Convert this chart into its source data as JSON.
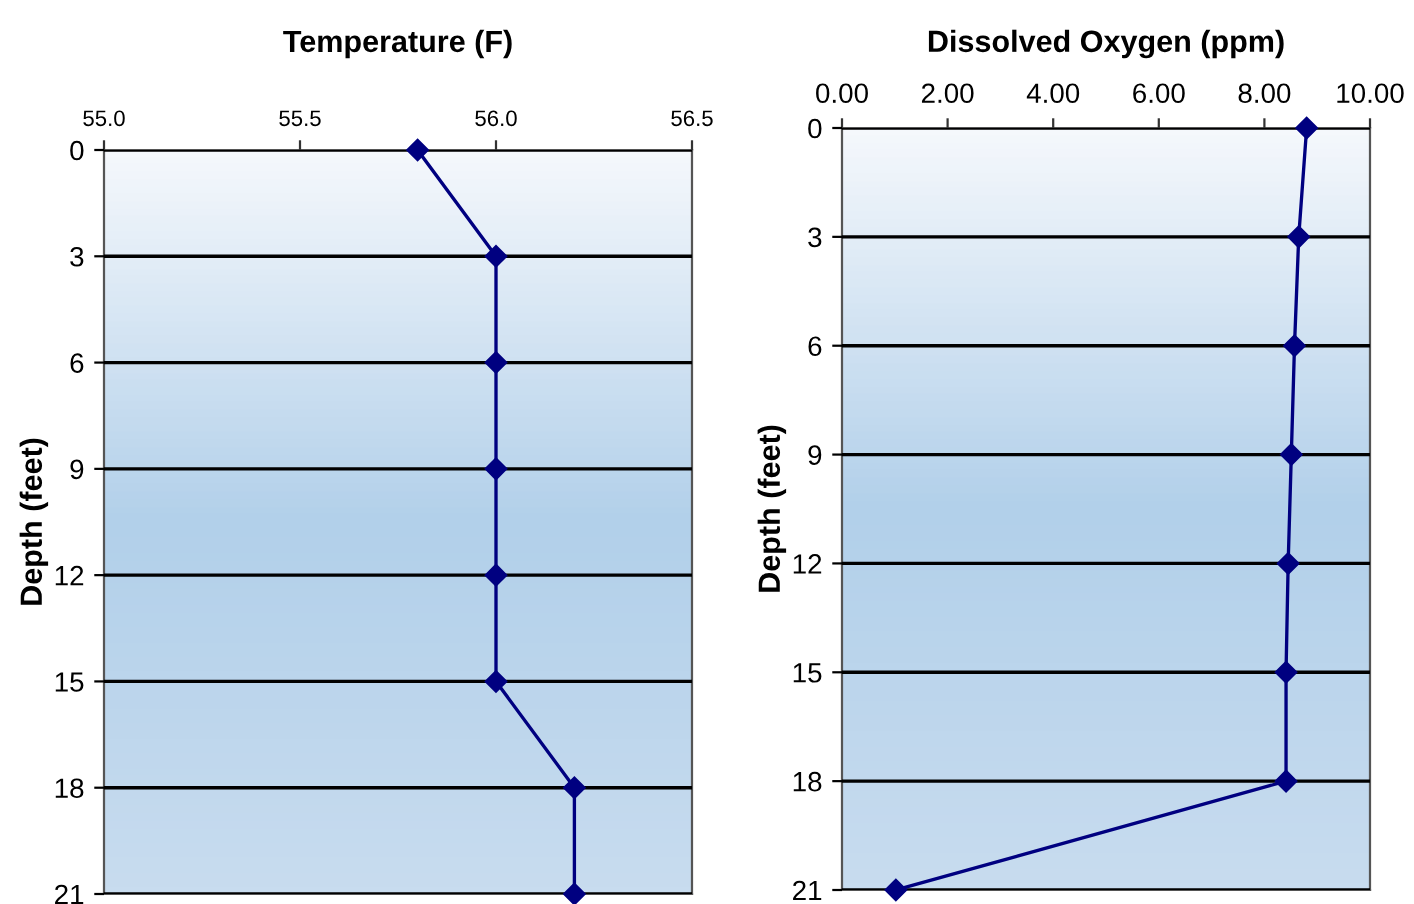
{
  "chart_data": [
    {
      "type": "line",
      "title": "Temperature (F)",
      "ylabel": "Depth (feet)",
      "marker": "diamond",
      "line_style": "solid",
      "grid": "y",
      "series": [
        {
          "color": "#000080",
          "x": [
            55.8,
            56.0,
            56.0,
            56.0,
            56.0,
            56.0,
            56.2,
            56.2
          ],
          "values": [
            0,
            3,
            6,
            9,
            12,
            15,
            18,
            21
          ]
        }
      ],
      "xlim": [
        55.0,
        56.5
      ],
      "xticks": [
        {
          "value": 55.0,
          "label": "55.0"
        },
        {
          "value": 55.5,
          "label": "55.5"
        },
        {
          "value": 56.0,
          "label": "56.0"
        },
        {
          "value": 56.5,
          "label": "56.5"
        }
      ],
      "ylim": [
        21,
        0
      ],
      "yticks": [
        0,
        3,
        6,
        9,
        12,
        15,
        18,
        21
      ]
    },
    {
      "type": "line",
      "title": "Dissolved Oxygen (ppm)",
      "ylabel": "Depth (feet)",
      "marker": "diamond",
      "line_style": "solid",
      "grid": "y",
      "series": [
        {
          "color": "#000080",
          "x": [
            8.8,
            8.65,
            8.57,
            8.51,
            8.45,
            8.41,
            8.41,
            1.02
          ],
          "values": [
            0,
            3,
            6,
            9,
            12,
            15,
            18,
            21
          ]
        }
      ],
      "xlim": [
        0,
        10
      ],
      "xticks": [
        {
          "value": 0,
          "label": "0.00"
        },
        {
          "value": 2,
          "label": "2.00"
        },
        {
          "value": 4,
          "label": "4.00"
        },
        {
          "value": 6,
          "label": "6.00"
        },
        {
          "value": 8,
          "label": "8.00"
        },
        {
          "value": 10,
          "label": "10.00"
        }
      ],
      "ylim": [
        21,
        0
      ],
      "yticks": [
        0,
        3,
        6,
        9,
        12,
        15,
        18,
        21
      ]
    }
  ]
}
